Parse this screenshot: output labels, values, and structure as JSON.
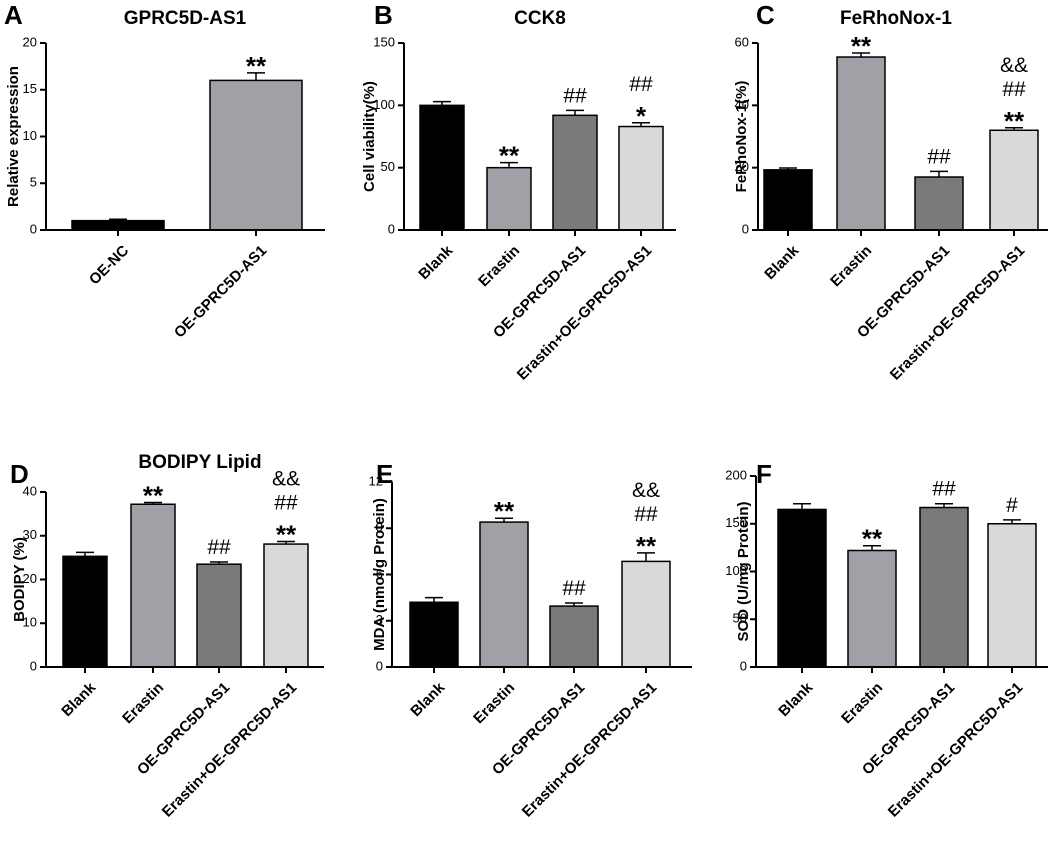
{
  "figure": {
    "panels": [
      "A",
      "B",
      "C",
      "D",
      "E",
      "F"
    ]
  },
  "chart_data": [
    {
      "panel": "A",
      "type": "bar",
      "title": "GPRC5D-AS1",
      "ylabel": "Relative expression",
      "ylim": [
        0,
        20
      ],
      "yticks": [
        0,
        5,
        10,
        15,
        20
      ],
      "categories": [
        "OE-NC",
        "OE-GPRC5D-AS1"
      ],
      "values": [
        1.0,
        16.0
      ],
      "errors": [
        0.15,
        0.8
      ],
      "colors": [
        "#000000",
        "#a0a0a6"
      ],
      "annotations": [
        [],
        [
          "**"
        ]
      ]
    },
    {
      "panel": "B",
      "type": "bar",
      "title": "CCK8",
      "ylabel": "Cell viability(%)",
      "ylim": [
        0,
        150
      ],
      "yticks": [
        0,
        50,
        100,
        150
      ],
      "categories": [
        "Blank",
        "Erastin",
        "OE-GPRC5D-AS1",
        "Erastin+OE-GPRC5D-AS1"
      ],
      "values": [
        100,
        50,
        92,
        83
      ],
      "errors": [
        3,
        4,
        4,
        3
      ],
      "colors": [
        "#000000",
        "#a0a0a6",
        "#7a7a7a",
        "#d9d9d9"
      ],
      "annotations": [
        [],
        [
          "**"
        ],
        [
          "##"
        ],
        [
          "##",
          "*"
        ]
      ]
    },
    {
      "panel": "C",
      "type": "bar",
      "title": "FeRhoNox-1",
      "ylabel": "FeRhoNox-1(%)",
      "ylim": [
        0,
        60
      ],
      "yticks": [
        0,
        20,
        40,
        60
      ],
      "categories": [
        "Blank",
        "Erastin",
        "OE-GPRC5D-AS1",
        "Erastin+OE-GPRC5D-AS1"
      ],
      "values": [
        19.3,
        55.5,
        17.0,
        32.0
      ],
      "errors": [
        0.6,
        1.3,
        1.8,
        0.8
      ],
      "colors": [
        "#000000",
        "#a0a0a6",
        "#7a7a7a",
        "#d9d9d9"
      ],
      "annotations": [
        [],
        [
          "**"
        ],
        [
          "##"
        ],
        [
          "&&",
          "##",
          "**"
        ]
      ]
    },
    {
      "panel": "D",
      "type": "bar",
      "title": "BODIPY Lipid",
      "ylabel": "BODIPY (%)",
      "ylim": [
        0,
        40
      ],
      "yticks": [
        0,
        10,
        20,
        30,
        40
      ],
      "categories": [
        "Blank",
        "Erastin",
        "OE-GPRC5D-AS1",
        "Erastin+OE-GPRC5D-AS1"
      ],
      "values": [
        25.3,
        37.2,
        23.5,
        28.1
      ],
      "errors": [
        0.9,
        0.4,
        0.5,
        0.6
      ],
      "colors": [
        "#000000",
        "#a0a0a6",
        "#7a7a7a",
        "#d9d9d9"
      ],
      "annotations": [
        [],
        [
          "**"
        ],
        [
          "##"
        ],
        [
          "&&",
          "##",
          "**"
        ]
      ]
    },
    {
      "panel": "E",
      "type": "bar",
      "title": "",
      "ylabel": "MDA (nmol/g Protein)",
      "ylim": [
        0,
        12
      ],
      "yticks": [
        0,
        3,
        6,
        9,
        12
      ],
      "categories": [
        "Blank",
        "Erastin",
        "OE-GPRC5D-AS1",
        "Erastin+OE-GPRC5D-AS1"
      ],
      "values": [
        4.2,
        9.4,
        3.95,
        6.85
      ],
      "errors": [
        0.3,
        0.25,
        0.2,
        0.55
      ],
      "colors": [
        "#000000",
        "#a0a0a6",
        "#7a7a7a",
        "#d9d9d9"
      ],
      "annotations": [
        [],
        [
          "**"
        ],
        [
          "##"
        ],
        [
          "&&",
          "##",
          "**"
        ]
      ]
    },
    {
      "panel": "F",
      "type": "bar",
      "title": "",
      "ylabel": "SOD (U/mg Protein)",
      "ylim": [
        0,
        200
      ],
      "yticks": [
        0,
        50,
        100,
        150,
        200
      ],
      "categories": [
        "Blank",
        "Erastin",
        "OE-GPRC5D-AS1",
        "Erastin+OE-GPRC5D-AS1"
      ],
      "values": [
        165,
        122,
        167,
        150
      ],
      "errors": [
        6,
        5,
        4,
        4
      ],
      "colors": [
        "#000000",
        "#a0a0a6",
        "#7a7a7a",
        "#d9d9d9"
      ],
      "annotations": [
        [],
        [
          "**"
        ],
        [
          "##"
        ],
        [
          "#"
        ]
      ]
    }
  ]
}
